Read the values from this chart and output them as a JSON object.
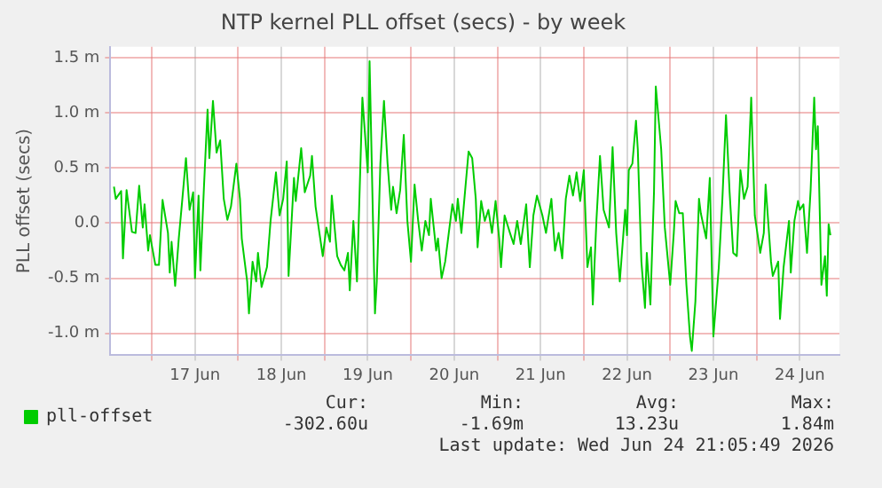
{
  "chart_data": {
    "type": "line",
    "title": "NTP kernel PLL offset (secs) - by week",
    "ylabel": "PLL offset (secs)",
    "x": [
      "2026-06-16T13:30",
      "2026-06-16T14:00",
      "2026-06-16T15:30",
      "2026-06-16T16:00",
      "2026-06-16T17:00",
      "2026-06-16T18:30",
      "2026-06-16T19:30",
      "2026-06-16T20:30",
      "2026-06-16T21:30",
      "2026-06-16T22:00",
      "2026-06-16T23:00",
      "2026-06-16T23:30",
      "2026-06-17T01:00",
      "2026-06-17T02:00",
      "2026-06-17T03:00",
      "2026-06-17T04:30",
      "2026-06-17T05:00",
      "2026-06-17T05:30",
      "2026-06-17T06:30",
      "2026-06-17T07:30",
      "2026-06-17T08:30",
      "2026-06-17T09:30",
      "2026-06-17T10:30",
      "2026-06-17T11:30",
      "2026-06-17T12:00",
      "2026-06-17T13:00",
      "2026-06-17T13:30",
      "2026-06-17T14:30",
      "2026-06-17T15:30",
      "2026-06-17T16:00",
      "2026-06-17T17:00",
      "2026-06-17T18:00",
      "2026-06-17T19:00",
      "2026-06-17T20:00",
      "2026-06-17T21:00",
      "2026-06-17T22:00",
      "2026-06-17T23:30",
      "2026-06-18T00:30",
      "2026-06-18T01:00",
      "2026-06-18T02:30",
      "2026-06-18T03:00",
      "2026-06-18T04:00",
      "2026-06-18T05:00",
      "2026-06-18T05:30",
      "2026-06-18T06:30",
      "2026-06-18T08:00",
      "2026-06-18T09:00",
      "2026-06-18T10:30",
      "2026-06-18T11:30",
      "2026-06-18T12:30",
      "2026-06-18T13:30",
      "2026-06-18T14:00",
      "2026-06-18T15:30",
      "2026-06-18T16:00",
      "2026-06-18T17:30",
      "2026-06-18T18:30",
      "2026-06-18T20:00",
      "2026-06-18T20:30",
      "2026-06-18T21:30",
      "2026-06-18T23:30",
      "2026-06-19T00:30",
      "2026-06-19T01:30",
      "2026-06-19T02:00",
      "2026-06-19T03:30",
      "2026-06-19T04:30",
      "2026-06-19T05:30",
      "2026-06-19T06:30",
      "2026-06-19T07:00",
      "2026-06-19T08:00",
      "2026-06-19T09:00",
      "2026-06-19T10:30",
      "2026-06-19T12:00",
      "2026-06-19T12:30",
      "2026-06-19T14:00",
      "2026-06-19T14:30",
      "2026-06-19T15:30",
      "2026-06-19T16:30",
      "2026-06-19T17:30",
      "2026-06-19T18:30",
      "2026-06-19T19:00",
      "2026-06-19T20:00",
      "2026-06-19T21:00",
      "2026-06-19T22:00",
      "2026-06-19T23:00",
      "2026-06-20T00:00",
      "2026-06-20T01:00",
      "2026-06-20T02:00",
      "2026-06-20T03:00",
      "2026-06-20T04:00",
      "2026-06-20T05:00",
      "2026-06-20T05:30",
      "2026-06-20T07:00",
      "2026-06-20T07:30",
      "2026-06-20T08:30",
      "2026-06-20T09:30",
      "2026-06-20T10:30",
      "2026-06-20T11:30",
      "2026-06-20T12:30",
      "2026-06-20T13:00",
      "2026-06-20T14:00",
      "2026-06-20T15:00",
      "2026-06-20T16:00",
      "2026-06-20T17:00",
      "2026-06-20T18:00",
      "2026-06-20T18:30",
      "2026-06-20T19:30",
      "2026-06-20T20:30",
      "2026-06-20T21:30",
      "2026-06-20T22:30",
      "2026-06-20T23:30",
      "2026-06-21T00:30",
      "2026-06-21T01:00",
      "2026-06-21T02:00",
      "2026-06-21T03:30",
      "2026-06-21T04:30",
      "2026-06-21T05:30",
      "2026-06-21T06:30",
      "2026-06-21T08:00",
      "2026-06-21T09:00",
      "2026-06-21T10:00",
      "2026-06-21T11:00",
      "2026-06-21T12:30",
      "2026-06-21T13:30",
      "2026-06-21T15:00",
      "2026-06-21T16:00",
      "2026-06-21T17:00",
      "2026-06-21T18:00",
      "2026-06-21T19:00",
      "2026-06-21T20:00",
      "2026-06-21T21:00",
      "2026-06-21T22:00",
      "2026-06-21T23:00",
      "2026-06-22T00:00",
      "2026-06-22T01:00",
      "2026-06-22T02:00",
      "2026-06-22T02:30",
      "2026-06-22T03:30",
      "2026-06-22T04:30",
      "2026-06-22T05:30",
      "2026-06-22T07:00",
      "2026-06-22T08:00",
      "2026-06-22T09:00",
      "2026-06-22T10:00",
      "2026-06-22T11:30",
      "2026-06-22T12:00",
      "2026-06-22T12:30",
      "2026-06-22T13:30",
      "2026-06-22T14:30",
      "2026-06-22T15:00",
      "2026-06-22T16:00",
      "2026-06-22T17:00",
      "2026-06-22T17:30",
      "2026-06-22T18:30",
      "2026-06-22T19:30",
      "2026-06-22T20:00",
      "2026-06-22T21:30",
      "2026-06-22T22:30",
      "2026-06-23T00:00",
      "2026-06-23T01:00",
      "2026-06-23T01:30",
      "2026-06-23T02:30",
      "2026-06-23T03:30",
      "2026-06-23T04:30",
      "2026-06-23T05:30",
      "2026-06-23T06:00",
      "2026-06-23T07:00",
      "2026-06-23T08:00",
      "2026-06-23T08:30",
      "2026-06-23T10:00",
      "2026-06-23T11:00",
      "2026-06-23T12:00",
      "2026-06-23T13:30",
      "2026-06-23T14:30",
      "2026-06-23T15:30",
      "2026-06-23T16:30",
      "2026-06-23T17:30",
      "2026-06-23T18:30",
      "2026-06-23T19:30",
      "2026-06-23T20:30",
      "2026-06-23T21:30",
      "2026-06-23T22:30",
      "2026-06-23T23:30",
      "2026-06-24T01:00",
      "2026-06-24T02:00",
      "2026-06-24T02:30",
      "2026-06-24T04:00",
      "2026-06-24T04:30",
      "2026-06-24T06:00",
      "2026-06-24T06:30",
      "2026-06-24T07:30",
      "2026-06-24T09:00",
      "2026-06-24T09:30",
      "2026-06-24T10:30",
      "2026-06-24T11:30",
      "2026-06-24T12:00",
      "2026-06-24T13:00",
      "2026-06-24T14:00",
      "2026-06-24T15:00",
      "2026-06-24T16:00",
      "2026-06-24T16:30",
      "2026-06-24T17:00",
      "2026-06-24T18:00",
      "2026-06-24T19:00",
      "2026-06-24T19:30",
      "2026-06-24T20:00",
      "2026-06-24T20:30"
    ],
    "series": [
      {
        "name": "pll-offset",
        "color": "#00cc00",
        "values": [
          0.33,
          0.22,
          0.29,
          -0.32,
          0.3,
          -0.08,
          -0.09,
          0.34,
          -0.04,
          0.17,
          -0.25,
          -0.11,
          -0.38,
          -0.38,
          0.21,
          -0.09,
          -0.45,
          -0.17,
          -0.57,
          -0.14,
          0.22,
          0.59,
          0.12,
          0.28,
          -0.5,
          0.25,
          -0.43,
          0.33,
          1.03,
          0.59,
          1.11,
          0.64,
          0.75,
          0.22,
          0.03,
          0.15,
          0.54,
          0.22,
          -0.14,
          -0.53,
          -0.82,
          -0.35,
          -0.53,
          -0.27,
          -0.58,
          -0.4,
          0.02,
          0.46,
          0.07,
          0.22,
          0.56,
          -0.48,
          0.41,
          0.2,
          0.68,
          0.28,
          0.43,
          0.61,
          0.15,
          -0.3,
          -0.04,
          -0.17,
          0.25,
          -0.3,
          -0.38,
          -0.43,
          -0.27,
          -0.61,
          0.02,
          -0.53,
          1.14,
          0.46,
          1.47,
          -0.82,
          -0.53,
          0.54,
          1.11,
          0.54,
          0.12,
          0.33,
          0.09,
          0.3,
          0.8,
          0.02,
          -0.35,
          0.35,
          0.02,
          -0.25,
          0.02,
          -0.11,
          0.22,
          -0.25,
          -0.14,
          -0.5,
          -0.35,
          -0.09,
          0.17,
          0.02,
          0.22,
          -0.09,
          0.28,
          0.65,
          0.59,
          0.22,
          -0.22,
          0.2,
          0.02,
          0.12,
          -0.09,
          0.2,
          -0.14,
          -0.4,
          0.07,
          -0.09,
          -0.19,
          0.02,
          -0.19,
          0.17,
          -0.4,
          0.07,
          0.25,
          0.07,
          -0.09,
          0.22,
          -0.25,
          -0.09,
          -0.32,
          0.22,
          0.43,
          0.25,
          0.46,
          0.2,
          0.48,
          -0.4,
          -0.22,
          -0.74,
          0.02,
          0.61,
          0.12,
          -0.04,
          0.69,
          -0.09,
          -0.53,
          0.12,
          -0.11,
          0.48,
          0.54,
          0.93,
          0.67,
          -0.35,
          -0.77,
          -0.27,
          -0.74,
          0.28,
          1.24,
          0.67,
          -0.04,
          -0.56,
          -0.09,
          0.2,
          0.09,
          0.09,
          -0.56,
          -1.03,
          -1.16,
          -0.71,
          0.22,
          0.09,
          -0.14,
          0.41,
          -1.03,
          -0.4,
          0.22,
          0.98,
          0.28,
          -0.27,
          -0.3,
          0.48,
          0.22,
          0.33,
          1.14,
          0.07,
          -0.27,
          -0.09,
          0.35,
          -0.35,
          -0.48,
          -0.35,
          -0.87,
          -0.4,
          0.02,
          -0.45,
          0.02,
          0.2,
          0.12,
          0.17,
          -0.27,
          0.3,
          1.14,
          0.67,
          0.88,
          -0.56,
          -0.3,
          -0.66,
          -0.01,
          -0.11
        ]
      }
    ],
    "xlim": [
      "2026-06-16T12:30",
      "2026-06-24T23:00"
    ],
    "xticks": [
      {
        "value": "2026-06-17T00:00",
        "label": null
      },
      {
        "value": "2026-06-17T12:00",
        "label": "17 Jun"
      },
      {
        "value": "2026-06-18T00:00",
        "label": null
      },
      {
        "value": "2026-06-18T12:00",
        "label": "18 Jun"
      },
      {
        "value": "2026-06-19T00:00",
        "label": null
      },
      {
        "value": "2026-06-19T12:00",
        "label": "19 Jun"
      },
      {
        "value": "2026-06-20T00:00",
        "label": null
      },
      {
        "value": "2026-06-20T12:00",
        "label": "20 Jun"
      },
      {
        "value": "2026-06-21T00:00",
        "label": null
      },
      {
        "value": "2026-06-21T12:00",
        "label": "21 Jun"
      },
      {
        "value": "2026-06-22T00:00",
        "label": null
      },
      {
        "value": "2026-06-22T12:00",
        "label": "22 Jun"
      },
      {
        "value": "2026-06-23T00:00",
        "label": null
      },
      {
        "value": "2026-06-23T12:00",
        "label": "23 Jun"
      },
      {
        "value": "2026-06-24T00:00",
        "label": null
      },
      {
        "value": "2026-06-24T12:00",
        "label": "24 Jun"
      }
    ],
    "ylim": [
      -1.2,
      1.6
    ],
    "yticks": [
      {
        "value": -1.0,
        "label": "-1.0 m"
      },
      {
        "value": -0.5,
        "label": "-0.5 m"
      },
      {
        "value": 0,
        "label": "0.0"
      },
      {
        "value": 0.5,
        "label": "0.5 m"
      },
      {
        "value": 1.0,
        "label": "1.0 m"
      },
      {
        "value": 1.5,
        "label": "1.5 m"
      }
    ],
    "grid": true,
    "legend": "bottom",
    "marker": "none",
    "line_style": "solid",
    "annotations": [
      "Cur:",
      "Min:",
      "Avg:",
      "Max:",
      "-302.60u",
      "-1.69m",
      "13.23u",
      "1.84m",
      "Last update: Wed Jun 24 21:05:49 2026"
    ]
  }
}
